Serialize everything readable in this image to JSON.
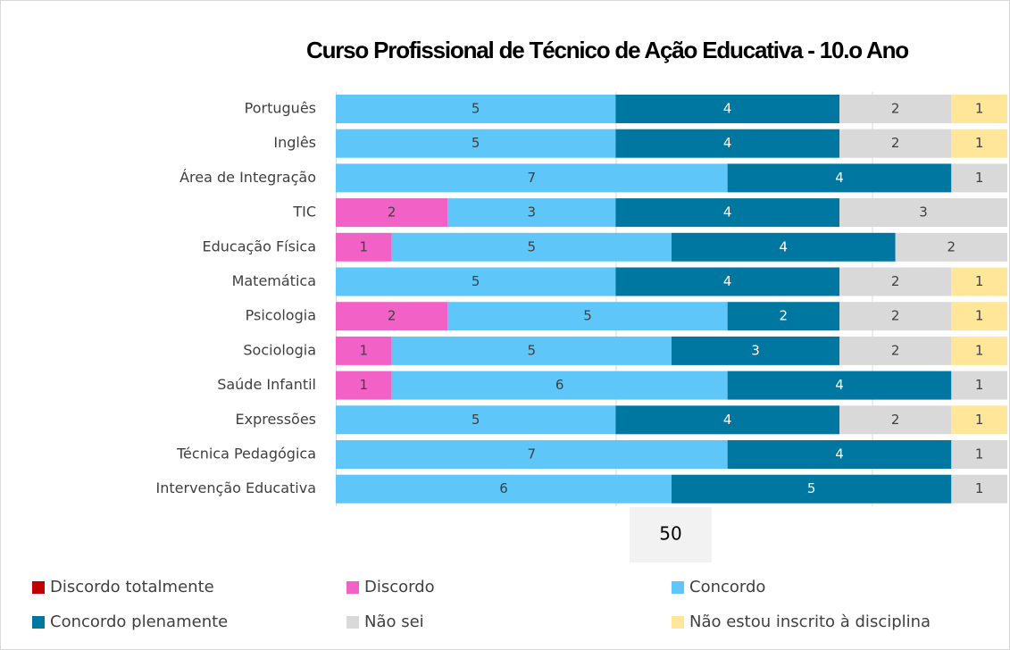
{
  "chart_data": {
    "type": "stacked-bar-horizontal",
    "title": "Curso Profissional de Técnico de Ação Educativa - 10.o Ano",
    "annotation": "50",
    "categories": [
      "Português",
      "Inglês",
      "Área de Integração",
      "TIC",
      "Educação Física",
      "Matemática",
      "Psicologia",
      "Sociologia",
      "Saúde Infantil",
      "Expressões",
      "Técnica Pedagógica",
      "Intervenção Educativa"
    ],
    "xlim": [
      0,
      12
    ],
    "series": [
      {
        "name": "Discordo totalmente",
        "color": "#c00000",
        "values": [
          null,
          null,
          null,
          null,
          null,
          null,
          null,
          null,
          null,
          null,
          null,
          null
        ]
      },
      {
        "name": "Discordo",
        "color": "#f262c6",
        "values": [
          null,
          null,
          null,
          2,
          1,
          null,
          2,
          1,
          1,
          null,
          null,
          null
        ]
      },
      {
        "name": "Concordo",
        "color": "#5ec6f8",
        "values": [
          5,
          5,
          7,
          3,
          5,
          5,
          5,
          5,
          6,
          5,
          7,
          6
        ]
      },
      {
        "name": "Concordo plenamente",
        "color": "#0077a0",
        "values": [
          4,
          4,
          4,
          4,
          4,
          4,
          2,
          3,
          4,
          4,
          4,
          5
        ]
      },
      {
        "name": "Não sei",
        "color": "#d9d9d9",
        "values": [
          2,
          2,
          1,
          3,
          2,
          2,
          2,
          2,
          1,
          2,
          1,
          1
        ]
      },
      {
        "name": "Não estou inscrito à disciplina",
        "color": "#ffe699",
        "values": [
          1,
          1,
          null,
          null,
          null,
          1,
          1,
          1,
          null,
          1,
          null,
          null
        ]
      }
    ]
  }
}
